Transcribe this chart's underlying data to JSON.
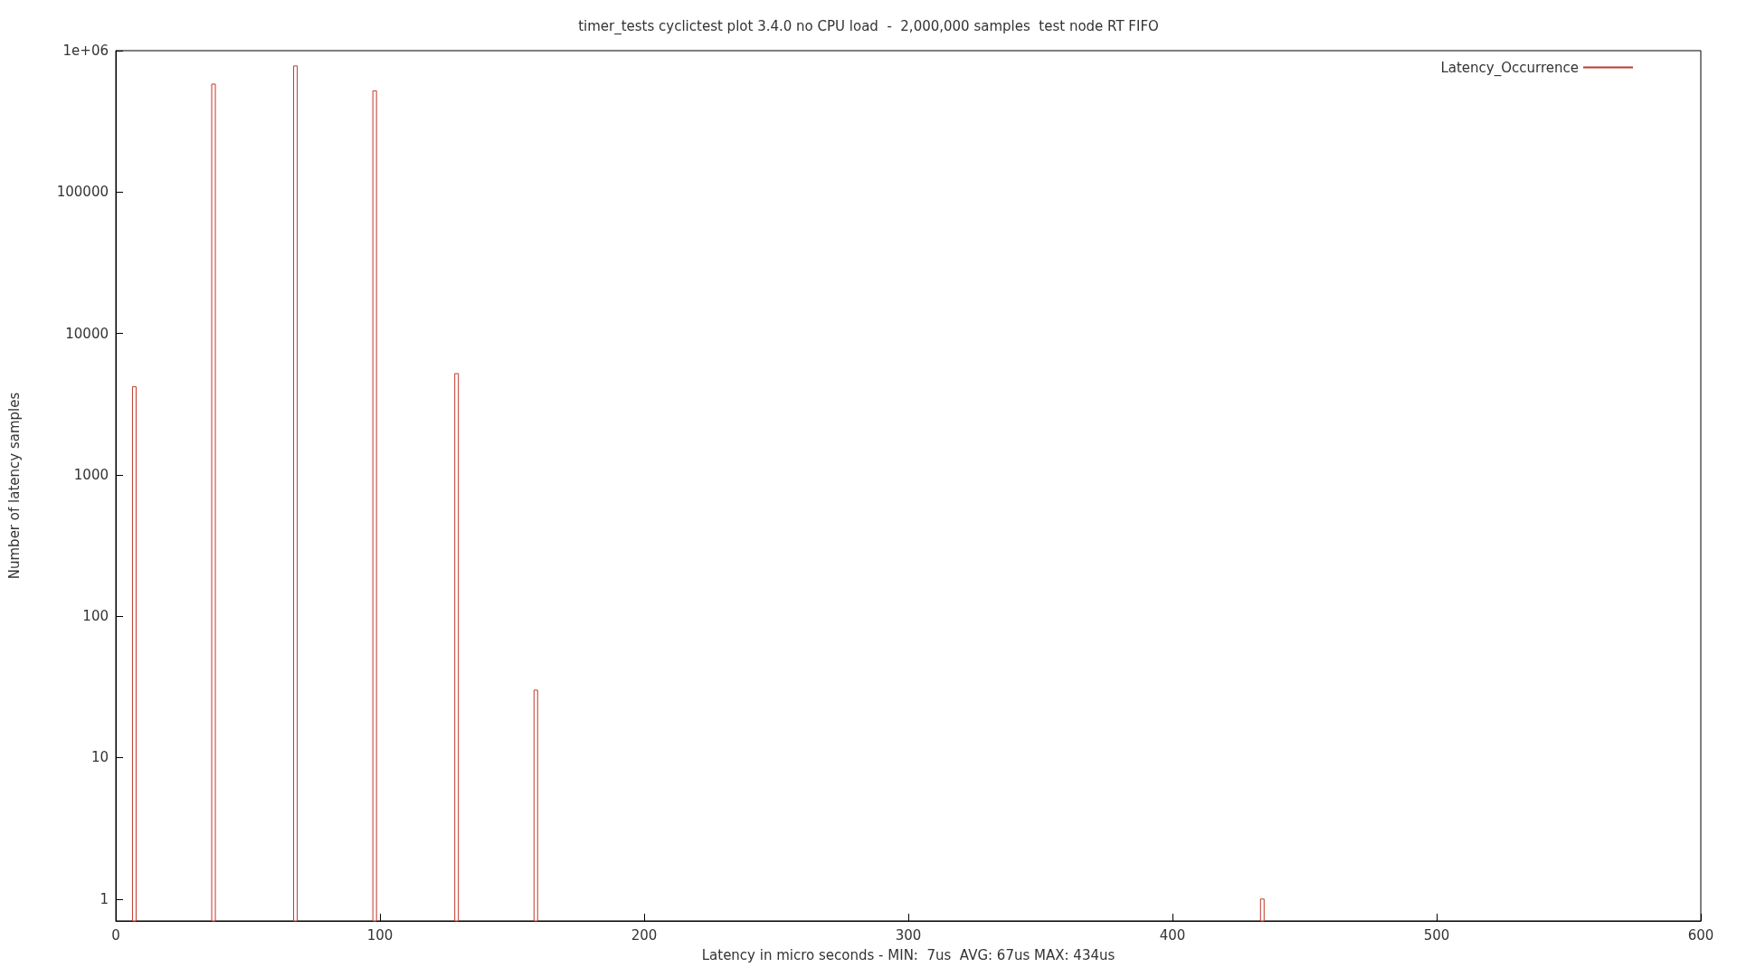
{
  "chart_data": {
    "type": "bar",
    "title": "timer_tests cyclictest plot 3.4.0 no CPU load  -  2,000,000 samples  test node RT FIFO",
    "xlabel": "Latency in micro seconds - MIN:  7us  AVG: 67us MAX: 434us",
    "ylabel": "Number of latency samples",
    "x": [
      7,
      37,
      68,
      98,
      129,
      159,
      434
    ],
    "series": [
      {
        "name": "Latency_Occurrence",
        "color": "#c0392b",
        "values": [
          4200,
          580000,
          780000,
          520000,
          5200,
          30,
          1
        ]
      }
    ],
    "xlim": [
      0,
      600
    ],
    "xticks": [
      0,
      100,
      200,
      300,
      400,
      500,
      600
    ],
    "ylim": [
      0.7,
      1000000
    ],
    "yticks": [
      1,
      10,
      100,
      1000,
      10000,
      100000,
      {
        "value": 1000000,
        "label": "1e+06"
      }
    ],
    "log": "y",
    "grid": false,
    "legend": "top right"
  }
}
